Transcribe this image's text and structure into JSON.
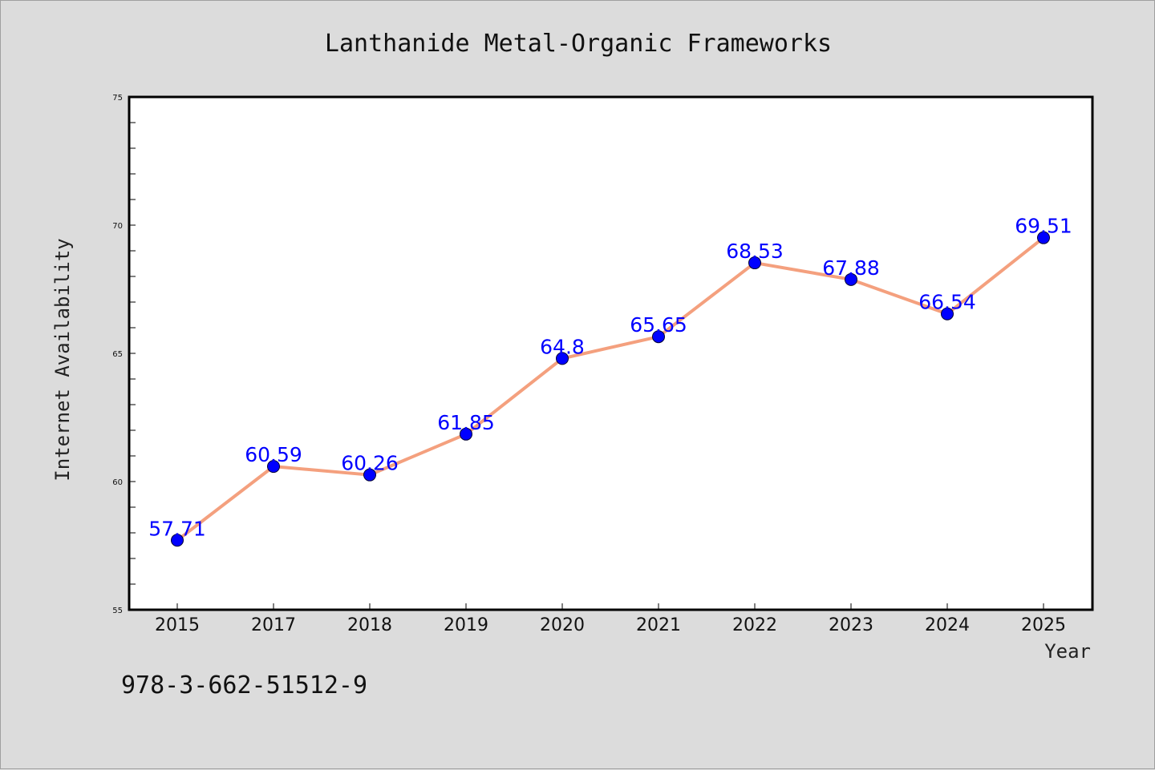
{
  "chart_data": {
    "type": "line",
    "title": "Lanthanide Metal-Organic Frameworks",
    "xlabel": "Year",
    "ylabel": "Internet Availability",
    "categories": [
      "2015",
      "2017",
      "2018",
      "2019",
      "2020",
      "2021",
      "2022",
      "2023",
      "2024",
      "2025"
    ],
    "values": [
      57.71,
      60.59,
      60.26,
      61.85,
      64.8,
      65.65,
      68.53,
      67.88,
      66.54,
      69.51
    ],
    "data_labels": [
      "57.71",
      "60.59",
      "60.26",
      "61.85",
      "64.8",
      "65.65",
      "68.53",
      "67.88",
      "66.54",
      "69.51"
    ],
    "ylim": [
      55,
      75
    ],
    "yticks": [
      55,
      60,
      65,
      70,
      75
    ],
    "grid": false,
    "legend": "none",
    "line_color": "#f4a07e",
    "marker_color": "#0000ff",
    "label_color": "#0000ff"
  },
  "footer_text": "978-3-662-51512-9"
}
